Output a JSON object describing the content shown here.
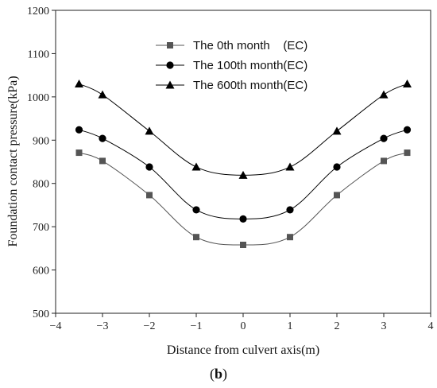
{
  "chart_data": {
    "type": "line",
    "xlabel": "Distance from culvert axis(m)",
    "ylabel": "Foundation contact pressure(kPa)",
    "xlim": [
      -4,
      4
    ],
    "ylim": [
      500,
      1200
    ],
    "xticks": [
      -4,
      -3,
      -2,
      -1,
      0,
      1,
      2,
      3,
      4
    ],
    "xtick_labels": [
      "−4",
      "−3",
      "−2",
      "−1",
      "0",
      "1",
      "2",
      "3",
      "4"
    ],
    "yticks": [
      500,
      600,
      700,
      800,
      900,
      1000,
      1100,
      1200
    ],
    "ytick_labels": [
      "500",
      "600",
      "700",
      "800",
      "900",
      "1000",
      "1100",
      "1200"
    ],
    "x": [
      -3.5,
      -3,
      -2,
      -1,
      0,
      1,
      2,
      3,
      3.5
    ],
    "series": [
      {
        "name": "The 0th month    (EC)",
        "marker": "square",
        "color": "#555555",
        "values": [
          871,
          852,
          773,
          676,
          658,
          676,
          773,
          852,
          871
        ]
      },
      {
        "name": "The 100th month(EC)",
        "marker": "circle",
        "color": "#000000",
        "values": [
          924,
          904,
          838,
          739,
          718,
          739,
          838,
          904,
          924
        ]
      },
      {
        "name": "The 600th month(EC)",
        "marker": "triangle",
        "color": "#000000",
        "values": [
          1030,
          1005,
          921,
          838,
          819,
          838,
          921,
          1005,
          1030
        ]
      }
    ],
    "legend_position": "top-center",
    "grid": false
  },
  "caption": {
    "open": "(",
    "letter": "b",
    "close": ")"
  }
}
